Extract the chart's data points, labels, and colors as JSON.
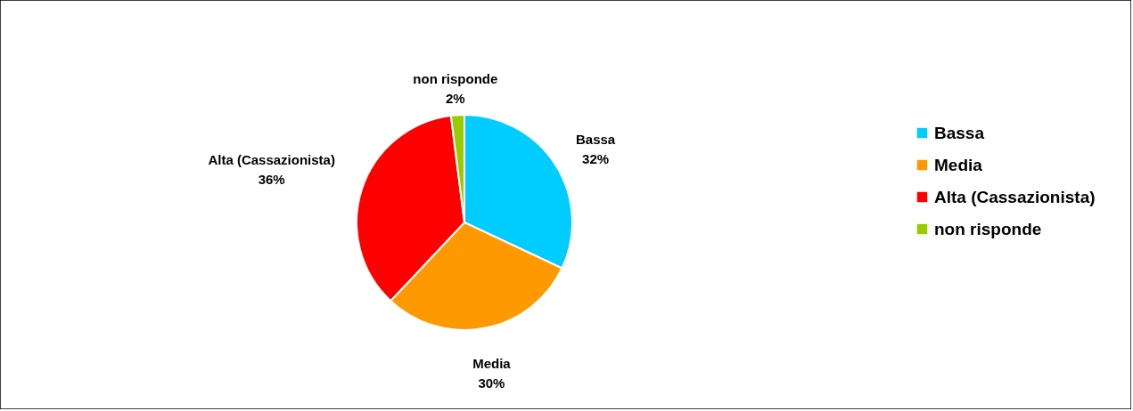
{
  "chart_data": {
    "type": "pie",
    "categories": [
      "Bassa",
      "Media",
      "Alta (Cassazionista)",
      "non risponde"
    ],
    "values": [
      32,
      30,
      36,
      2
    ],
    "value_labels": [
      "32%",
      "30%",
      "36%",
      "2%"
    ],
    "colors": [
      "#00ccff",
      "#ff9900",
      "#ff0000",
      "#99cc00"
    ],
    "legend": "right"
  }
}
